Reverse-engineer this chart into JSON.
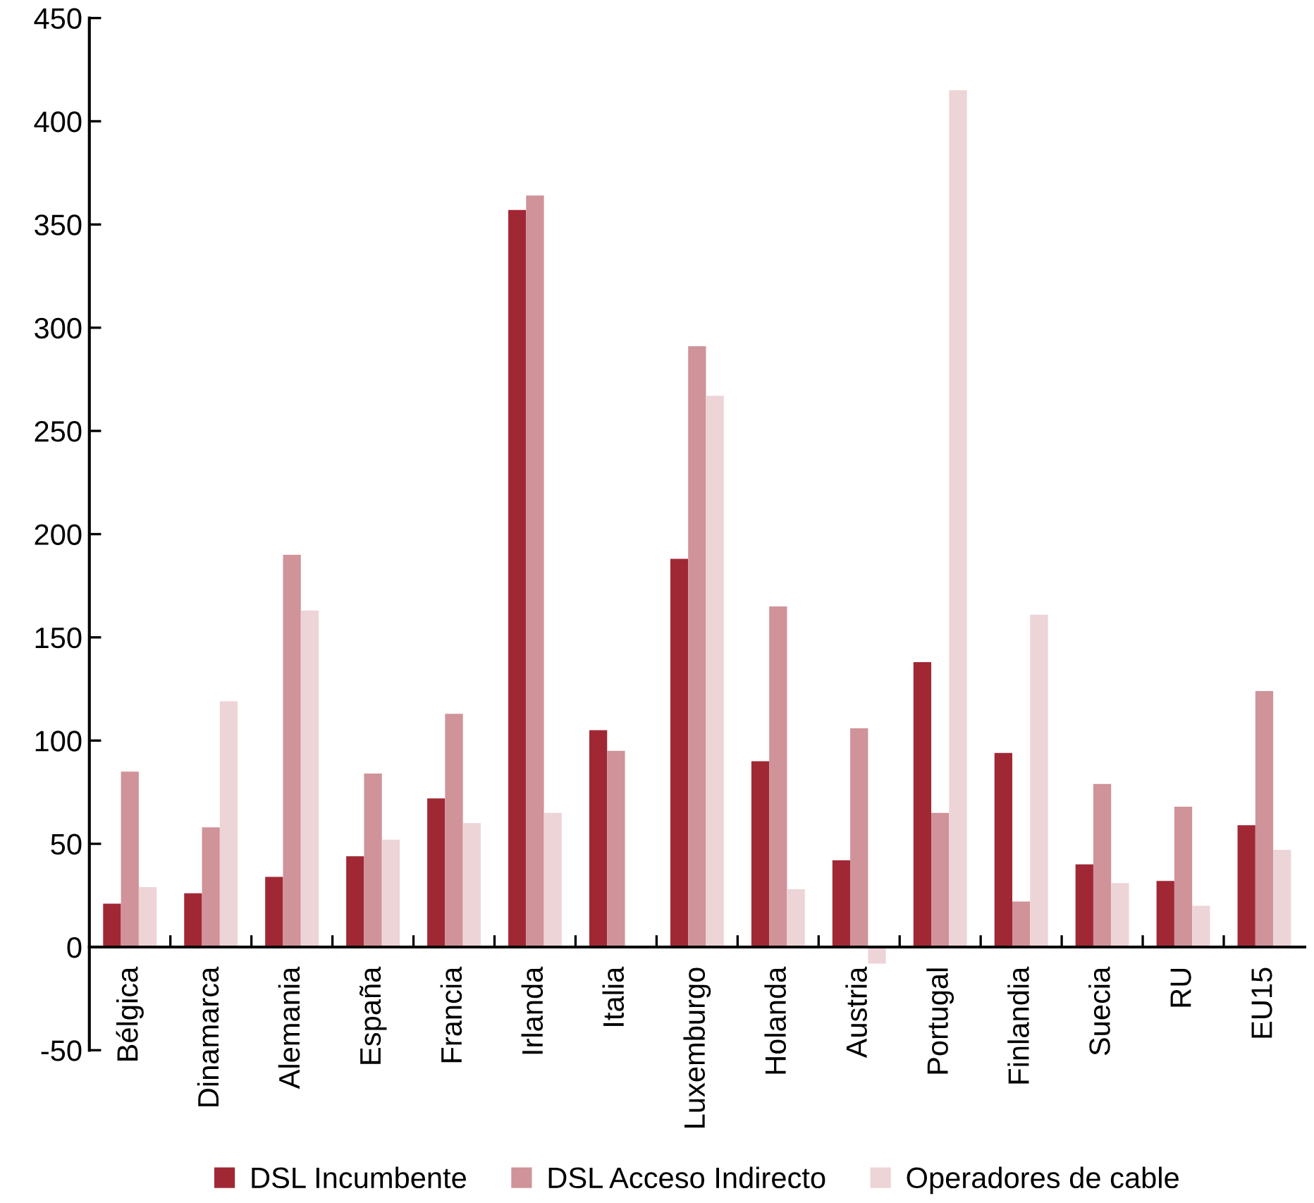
{
  "chart_data": {
    "type": "bar",
    "categories": [
      "Bélgica",
      "Dinamarca",
      "Alemania",
      "España",
      "Francia",
      "Irlanda",
      "Italia",
      "Luxemburgo",
      "Holanda",
      "Austria",
      "Portugal",
      "Finlandia",
      "Suecia",
      "RU",
      "EU15"
    ],
    "series": [
      {
        "name": "DSL Incumbente",
        "color": "#a02835",
        "values": [
          21,
          26,
          34,
          44,
          72,
          357,
          105,
          188,
          90,
          42,
          138,
          94,
          40,
          32,
          59
        ]
      },
      {
        "name": "DSL Acceso Indirecto",
        "color": "#cf9399",
        "values": [
          85,
          58,
          190,
          84,
          113,
          364,
          95,
          291,
          165,
          106,
          65,
          22,
          79,
          68,
          124
        ]
      },
      {
        "name": "Operadores de cable",
        "color": "#edd4d7",
        "values": [
          29,
          119,
          163,
          52,
          60,
          65,
          null,
          267,
          28,
          -8,
          415,
          161,
          31,
          20,
          47
        ]
      }
    ],
    "ylim": [
      -50,
      450
    ],
    "yticks": [
      -50,
      0,
      50,
      100,
      150,
      200,
      250,
      300,
      350,
      400,
      450
    ],
    "grid": false,
    "legend": "bottom"
  }
}
